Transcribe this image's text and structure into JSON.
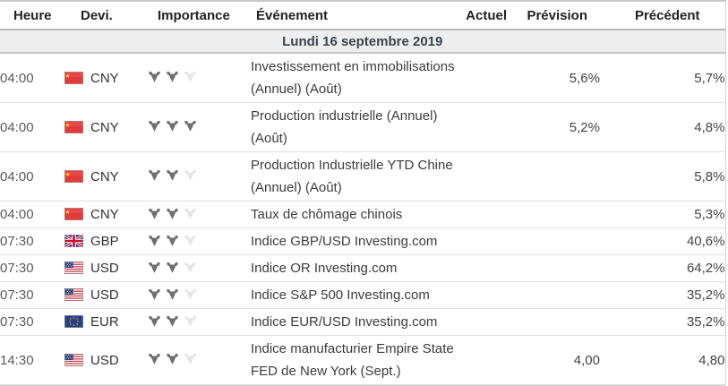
{
  "table": {
    "columns": [
      {
        "key": "time",
        "label": "Heure"
      },
      {
        "key": "currency",
        "label": "Devi."
      },
      {
        "key": "importance",
        "label": "Importance"
      },
      {
        "key": "event",
        "label": "Événement"
      },
      {
        "key": "actual",
        "label": "Actuel"
      },
      {
        "key": "forecast",
        "label": "Prévision"
      },
      {
        "key": "previous",
        "label": "Précédent"
      }
    ],
    "date_header": "Lundi 16 septembre 2019",
    "importance_max": 3,
    "rows": [
      {
        "time": "04:00",
        "currency": "CNY",
        "flag": "cn",
        "importance": 2,
        "event": "Investissement en immobilisations (Annuel) (Août)",
        "actual": "",
        "forecast": "5,6%",
        "previous": "5,7%"
      },
      {
        "time": "04:00",
        "currency": "CNY",
        "flag": "cn",
        "importance": 3,
        "event": "Production industrielle (Annuel) (Août)",
        "actual": "",
        "forecast": "5,2%",
        "previous": "4,8%"
      },
      {
        "time": "04:00",
        "currency": "CNY",
        "flag": "cn",
        "importance": 2,
        "event": "Production Industrielle YTD Chine (Annuel) (Août)",
        "actual": "",
        "forecast": "",
        "previous": "5,8%"
      },
      {
        "time": "04:00",
        "currency": "CNY",
        "flag": "cn",
        "importance": 2,
        "event": "Taux de chômage chinois",
        "actual": "",
        "forecast": "",
        "previous": "5,3%"
      },
      {
        "time": "07:30",
        "currency": "GBP",
        "flag": "gb",
        "importance": 2,
        "event": "Indice GBP/USD Investing.com",
        "actual": "",
        "forecast": "",
        "previous": "40,6%"
      },
      {
        "time": "07:30",
        "currency": "USD",
        "flag": "us",
        "importance": 2,
        "event": "Indice OR Investing.com",
        "actual": "",
        "forecast": "",
        "previous": "64,2%"
      },
      {
        "time": "07:30",
        "currency": "USD",
        "flag": "us",
        "importance": 2,
        "event": "Indice S&P 500 Investing.com",
        "actual": "",
        "forecast": "",
        "previous": "35,2%"
      },
      {
        "time": "07:30",
        "currency": "EUR",
        "flag": "eu",
        "importance": 2,
        "event": "Indice EUR/USD Investing.com",
        "actual": "",
        "forecast": "",
        "previous": "35,2%"
      },
      {
        "time": "14:30",
        "currency": "USD",
        "flag": "us",
        "importance": 2,
        "event": "Indice manufacturier Empire State FED de New York (Sept.)",
        "actual": "",
        "forecast": "4,00",
        "previous": "4,80"
      }
    ]
  },
  "icons": {
    "importance": "bull-icon",
    "flags": [
      "china-flag-icon",
      "uk-flag-icon",
      "us-flag-icon",
      "eu-flag-icon"
    ]
  },
  "colors": {
    "header_text": "#222222",
    "date_band_bg": "#eeeeee",
    "date_band_text": "#3a434d",
    "bull_active": "#6f6f6f",
    "bull_inactive": "#e6e6e6",
    "row_border": "#e1e1e1",
    "time_text": "#595959"
  }
}
